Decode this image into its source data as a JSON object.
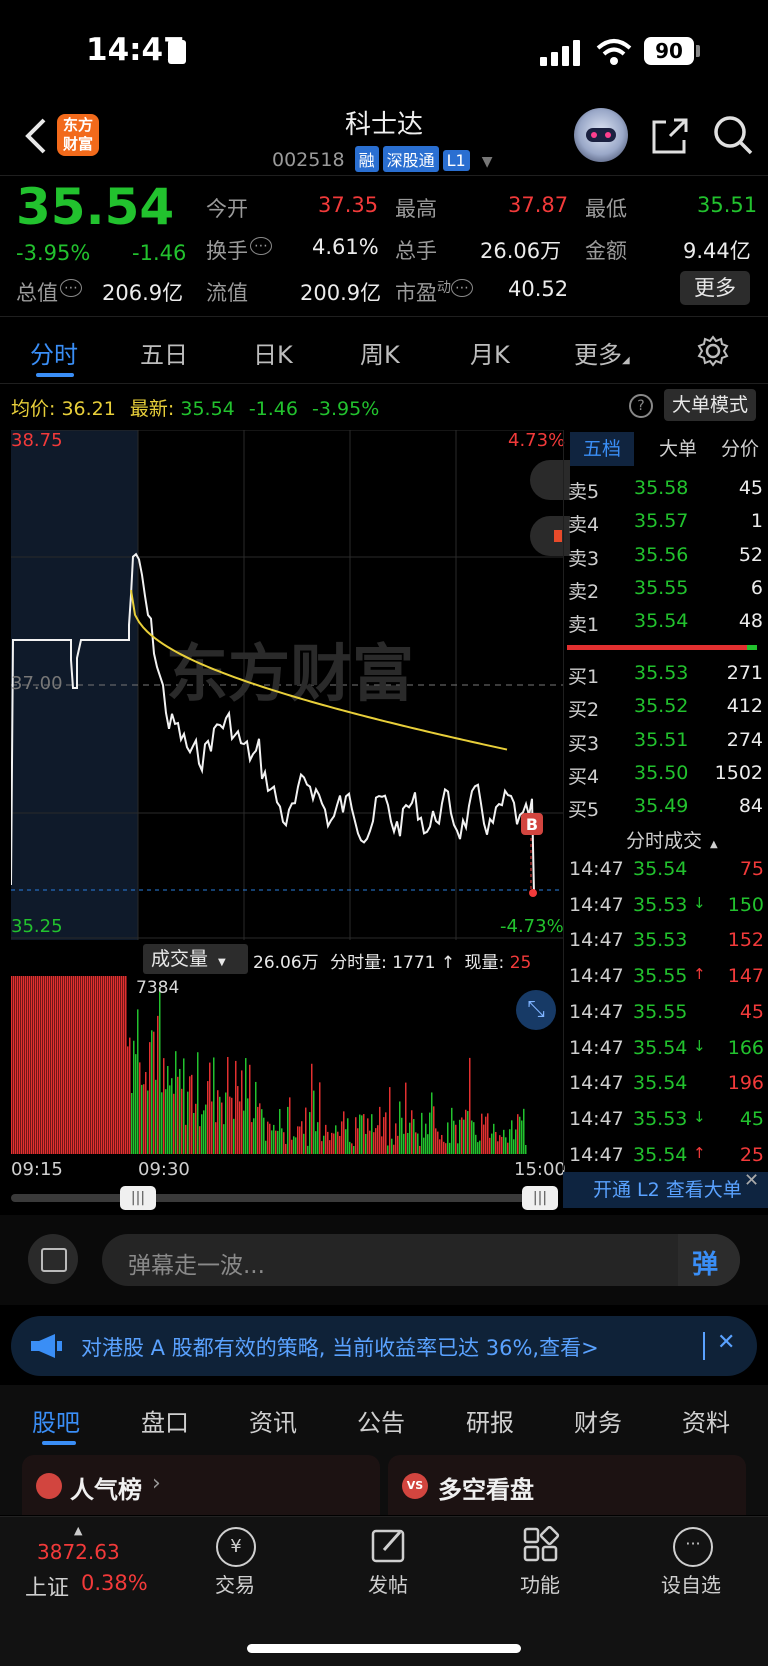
{
  "status_bar": {
    "time": "14:47",
    "battery": "90"
  },
  "header": {
    "title": "科士达",
    "code": "002518",
    "tags": [
      "融",
      "深股通",
      "L1"
    ]
  },
  "quote": {
    "price": "35.54",
    "change_pct": "-3.95%",
    "change": "-1.46",
    "open_label": "今开",
    "open": "37.35",
    "high_label": "最高",
    "high": "37.87",
    "low_label": "最低",
    "low": "35.51",
    "turnover_label": "换手",
    "turnover": "4.61%",
    "volume_label": "总手",
    "volume": "26.06万",
    "amount_label": "金额",
    "amount": "9.44亿",
    "mktcap_label": "总值",
    "mktcap": "206.9亿",
    "float_label": "流值",
    "float": "200.9亿",
    "pe_label": "市盈",
    "pe_sup": "动",
    "pe": "40.52",
    "more_label": "更多"
  },
  "chart_tabs": [
    "分时",
    "五日",
    "日K",
    "周K",
    "月K",
    "更多"
  ],
  "info_line": {
    "avg_label": "均价:",
    "avg": "36.21",
    "last_label": "最新:",
    "last": "35.54",
    "change": "-1.46",
    "pct": "-3.95%",
    "mode_button": "大单模式"
  },
  "chart_labels": {
    "top_price": "38.75",
    "bottom_price": "35.25",
    "top_pct": "4.73%",
    "bottom_pct": "-4.73%",
    "mid_price": "37.00",
    "watermark": "东方财富",
    "marker": "B"
  },
  "volume_bar": {
    "selector": "成交量",
    "total": "26.06万",
    "minute_label": "分时量:",
    "minute": "1771",
    "arrow": "↑",
    "now_label": "现量:",
    "now": "25",
    "max_label": "7384"
  },
  "time_axis": {
    "start": "09:15",
    "mid": "09:30",
    "end": "15:00"
  },
  "order_book": {
    "tabs": [
      "五档",
      "大单",
      "分价"
    ],
    "asks": [
      {
        "label": "卖5",
        "price": "35.58",
        "vol": "45"
      },
      {
        "label": "卖4",
        "price": "35.57",
        "vol": "1"
      },
      {
        "label": "卖3",
        "price": "35.56",
        "vol": "52"
      },
      {
        "label": "卖2",
        "price": "35.55",
        "vol": "6"
      },
      {
        "label": "卖1",
        "price": "35.54",
        "vol": "48"
      }
    ],
    "bids": [
      {
        "label": "买1",
        "price": "35.53",
        "vol": "271"
      },
      {
        "label": "买2",
        "price": "35.52",
        "vol": "412"
      },
      {
        "label": "买3",
        "price": "35.51",
        "vol": "274"
      },
      {
        "label": "买4",
        "price": "35.50",
        "vol": "1502"
      },
      {
        "label": "买5",
        "price": "35.49",
        "vol": "84"
      }
    ]
  },
  "ticks": {
    "title": "分时成交",
    "rows": [
      {
        "time": "14:47",
        "price": "35.54",
        "arrow": "",
        "vol": "75",
        "color": "#f23a3a"
      },
      {
        "time": "14:47",
        "price": "35.53",
        "arrow": "↓",
        "vol": "150",
        "color": "#22c22e"
      },
      {
        "time": "14:47",
        "price": "35.53",
        "arrow": "",
        "vol": "152",
        "color": "#f23a3a"
      },
      {
        "time": "14:47",
        "price": "35.55",
        "arrow": "↑",
        "vol": "147",
        "color": "#f23a3a"
      },
      {
        "time": "14:47",
        "price": "35.55",
        "arrow": "",
        "vol": "45",
        "color": "#f23a3a"
      },
      {
        "time": "14:47",
        "price": "35.54",
        "arrow": "↓",
        "vol": "166",
        "color": "#22c22e"
      },
      {
        "time": "14:47",
        "price": "35.54",
        "arrow": "",
        "vol": "196",
        "color": "#f23a3a"
      },
      {
        "time": "14:47",
        "price": "35.53",
        "arrow": "↓",
        "vol": "45",
        "color": "#22c22e"
      },
      {
        "time": "14:47",
        "price": "35.54",
        "arrow": "↑",
        "vol": "25",
        "color": "#f23a3a"
      }
    ],
    "l2_banner": "开通 L2 查看大单"
  },
  "danmu": {
    "placeholder": "弹幕走一波...",
    "send": "弹"
  },
  "promo": {
    "text": "对港股 A 股都有效的策略, 当前收益率已达 36%,查看>"
  },
  "bottom_tabs": [
    "股吧",
    "盘口",
    "资讯",
    "公告",
    "研报",
    "财务",
    "资料"
  ],
  "cards": {
    "left": "人气榜",
    "right": "多空看盘"
  },
  "nav": {
    "index_value": "3872.63",
    "index_name": "上证",
    "index_pct": "0.38%",
    "items": [
      "交易",
      "发帖",
      "功能",
      "设自选"
    ]
  },
  "colors": {
    "up": "#f23a3a",
    "down": "#22c22e",
    "avg_line": "#e8cf3a",
    "accent": "#2a6fd1"
  }
}
